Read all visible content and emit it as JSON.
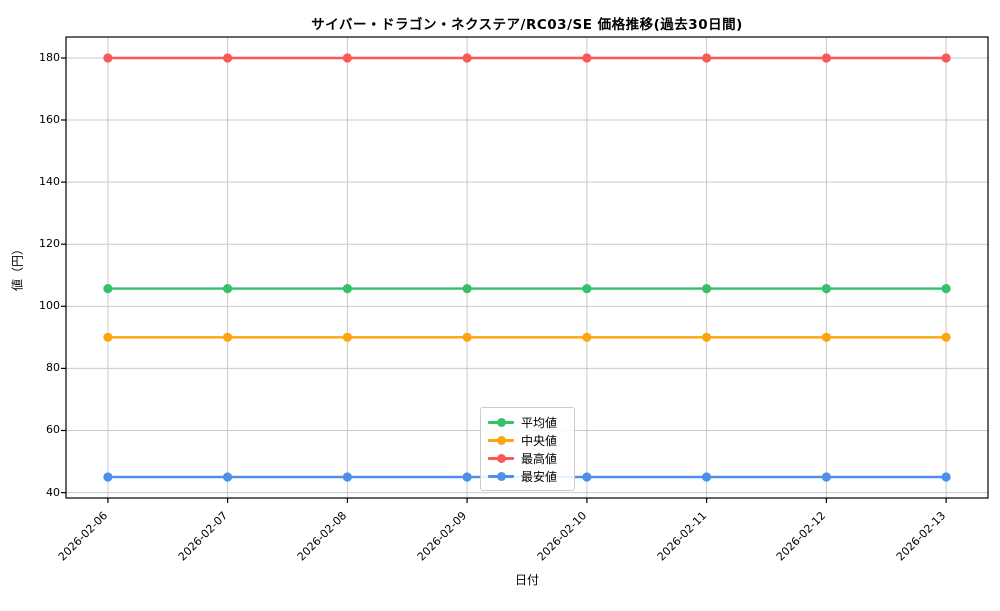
{
  "chart_data": {
    "type": "line",
    "title": "サイバー・ドラゴン・ネクステア/RC03/SE 価格推移(過去30日間)",
    "xlabel": "日付",
    "ylabel": "値（円）",
    "x": [
      "2026-02-06",
      "2026-02-07",
      "2026-02-08",
      "2026-02-09",
      "2026-02-10",
      "2026-02-11",
      "2026-02-12",
      "2026-02-13"
    ],
    "series": [
      {
        "name": "平均値",
        "color": "#35c16b",
        "values": [
          105.7,
          105.7,
          105.7,
          105.7,
          105.7,
          105.7,
          105.7,
          105.7
        ]
      },
      {
        "name": "中央値",
        "color": "#ffa40c",
        "values": [
          90,
          90,
          90,
          90,
          90,
          90,
          90,
          90
        ]
      },
      {
        "name": "最高値",
        "color": "#fa5757",
        "values": [
          180,
          180,
          180,
          180,
          180,
          180,
          180,
          180
        ]
      },
      {
        "name": "最安値",
        "color": "#4b90ea",
        "values": [
          45,
          45,
          45,
          45,
          45,
          45,
          45,
          45
        ]
      }
    ],
    "yticks": [
      40,
      60,
      80,
      100,
      120,
      140,
      160,
      180
    ],
    "ylim": [
      38.25,
      186.75
    ],
    "grid": true,
    "legend_position": "lower-center",
    "styles": {
      "grid_color": "#c9c9c9",
      "spine_color": "#000000",
      "text_color": "#000000",
      "background": "#ffffff",
      "legend_border": "#cccccc"
    }
  }
}
